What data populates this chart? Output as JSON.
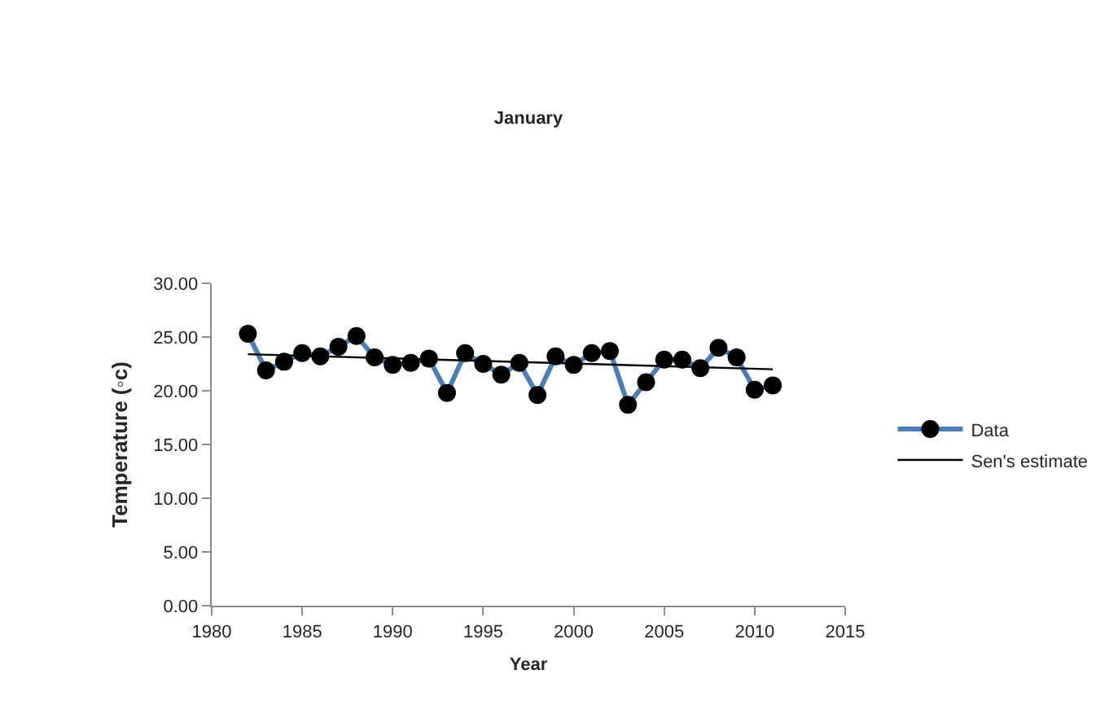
{
  "chart_data": {
    "type": "line",
    "title": "January",
    "xlabel": "Year",
    "ylabel": "Temperature (◦c)",
    "x": [
      1982,
      1983,
      1984,
      1985,
      1986,
      1987,
      1988,
      1989,
      1990,
      1991,
      1992,
      1993,
      1994,
      1995,
      1996,
      1997,
      1998,
      1999,
      2000,
      2001,
      2002,
      2003,
      2004,
      2005,
      2006,
      2007,
      2008,
      2009,
      2010,
      2011
    ],
    "series": [
      {
        "name": "Data",
        "color": "#4a7ebb",
        "values": [
          25.3,
          21.9,
          22.7,
          23.5,
          23.2,
          24.1,
          25.1,
          23.1,
          22.4,
          22.6,
          23.0,
          19.8,
          23.5,
          22.5,
          21.5,
          22.6,
          19.6,
          23.2,
          22.4,
          23.5,
          23.7,
          18.7,
          20.8,
          22.9,
          22.9,
          22.1,
          24.0,
          23.1,
          20.1,
          20.5
        ]
      },
      {
        "name": "Sen's estimate",
        "color": "#000000",
        "x": [
          1982,
          2011
        ],
        "values": [
          23.4,
          22.0
        ],
        "marker": "none"
      }
    ],
    "xlim": [
      1980,
      2015
    ],
    "xticks": [
      1980,
      1985,
      1990,
      1995,
      2000,
      2005,
      2010,
      2015
    ],
    "ylim": [
      0,
      30
    ],
    "yticks": [
      {
        "value": 0,
        "label": "0.00"
      },
      {
        "value": 5,
        "label": "5.00"
      },
      {
        "value": 10,
        "label": "10.00"
      },
      {
        "value": 15,
        "label": "15.00"
      },
      {
        "value": 20,
        "label": "20.00"
      },
      {
        "value": 25,
        "label": "25.00"
      },
      {
        "value": 30,
        "label": "30.00"
      }
    ],
    "grid": false,
    "legend": "right",
    "marker": "circle",
    "line_style": "solid"
  }
}
